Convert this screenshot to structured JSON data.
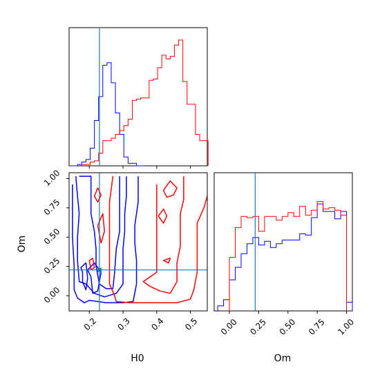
{
  "chart_data": {
    "type": "corner",
    "parameters": [
      "H0",
      "Om"
    ],
    "colors": {
      "sample_a": "#0000ff",
      "sample_b": "#ff0000",
      "truth": "#1f77b4"
    },
    "truth": {
      "H0": 0.23,
      "Om": 0.22
    },
    "axes": {
      "H0": {
        "range": [
          0.14,
          0.55
        ],
        "ticks": [
          0.2,
          0.3,
          0.4,
          0.5
        ],
        "tick_labels": [
          "0.2",
          "0.3",
          "0.4",
          "0.5"
        ],
        "label": "H0"
      },
      "Om": {
        "range": [
          -0.13,
          1.05
        ],
        "ticks": [
          0.0,
          0.25,
          0.5,
          0.75,
          1.0
        ],
        "tick_labels": [
          "0.00",
          "0.25",
          "0.50",
          "0.75",
          "1.00"
        ],
        "label": "Om"
      }
    },
    "hist_H0": {
      "bin_width": 0.0125,
      "series": [
        {
          "color": "blue",
          "x": [
            0.14,
            0.1525,
            0.165,
            0.1775,
            0.19,
            0.2025,
            0.215,
            0.2275,
            0.24,
            0.2525,
            0.265,
            0.2775,
            0.29,
            0.3025,
            0.315,
            0.3275,
            0.34,
            0.3525
          ],
          "y": [
            0,
            0,
            0.01,
            0.03,
            0.05,
            0.14,
            0.36,
            0.55,
            0.8,
            0.82,
            0.66,
            0.42,
            0.25,
            0.07,
            0.02,
            0.02,
            0,
            0
          ]
        },
        {
          "color": "red",
          "x": [
            0.1775,
            0.19,
            0.2025,
            0.215,
            0.2275,
            0.24,
            0.2525,
            0.265,
            0.2775,
            0.29,
            0.3025,
            0.315,
            0.3275,
            0.34,
            0.3525,
            0.365,
            0.3775,
            0.39,
            0.4025,
            0.415,
            0.4275,
            0.44,
            0.4525,
            0.465,
            0.4775,
            0.49,
            0.5025,
            0.515,
            0.5275,
            0.54
          ],
          "y": [
            0.01,
            0.01,
            0.03,
            0.04,
            0.1,
            0.2,
            0.2,
            0.22,
            0.25,
            0.28,
            0.32,
            0.37,
            0.52,
            0.53,
            0.54,
            0.54,
            0.68,
            0.69,
            0.78,
            0.88,
            0.85,
            0.87,
            0.96,
            1.0,
            0.67,
            0.49,
            0.49,
            0.25,
            0.2,
            0.2
          ]
        }
      ]
    },
    "hist_Om": {
      "bin_width": 0.05,
      "series": [
        {
          "color": "blue",
          "x": [
            -0.1,
            -0.05,
            0.0,
            0.05,
            0.1,
            0.15,
            0.2,
            0.25,
            0.3,
            0.35,
            0.4,
            0.45,
            0.5,
            0.55,
            0.6,
            0.65,
            0.7,
            0.75,
            0.8,
            0.85,
            0.9,
            0.95,
            1.0
          ],
          "y": [
            0.04,
            0.09,
            0.25,
            0.35,
            0.46,
            0.54,
            0.59,
            0.53,
            0.56,
            0.51,
            0.54,
            0.57,
            0.57,
            0.57,
            0.62,
            0.61,
            0.75,
            0.86,
            0.8,
            0.8,
            0.74,
            0.8,
            0.07
          ]
        },
        {
          "color": "red",
          "x": [
            0.0,
            0.05,
            0.1,
            0.15,
            0.2,
            0.25,
            0.3,
            0.35,
            0.4,
            0.45,
            0.5,
            0.55,
            0.6,
            0.65,
            0.7,
            0.75,
            0.8,
            0.85,
            0.9,
            0.95
          ],
          "y": [
            0.43,
            0.67,
            0.76,
            0.75,
            0.76,
            0.64,
            0.76,
            0.76,
            0.73,
            0.76,
            0.79,
            0.76,
            0.84,
            0.77,
            0.81,
            0.88,
            0.82,
            0.83,
            0.81,
            0.77
          ]
        }
      ]
    },
    "contours": [
      {
        "color": "blue",
        "level": "outer",
        "points": [
          [
            0.17,
            1.02
          ],
          [
            0.205,
            1.02
          ],
          [
            0.205,
            0.88
          ],
          [
            0.205,
            0.7
          ],
          [
            0.215,
            0.55
          ],
          [
            0.22,
            0.4
          ],
          [
            0.22,
            0.25
          ],
          [
            0.23,
            0.1
          ],
          [
            0.25,
            0.06
          ],
          [
            0.27,
            0.06
          ],
          [
            0.275,
            0.2
          ],
          [
            0.28,
            0.4
          ],
          [
            0.29,
            0.55
          ],
          [
            0.29,
            0.7
          ],
          [
            0.29,
            0.85
          ],
          [
            0.29,
            1.02
          ]
        ],
        "closed": false
      },
      {
        "color": "blue",
        "level": "outer2",
        "points": [
          [
            0.31,
            1.02
          ],
          [
            0.31,
            0.85
          ],
          [
            0.305,
            0.7
          ],
          [
            0.305,
            0.55
          ],
          [
            0.3,
            0.4
          ],
          [
            0.3,
            0.25
          ],
          [
            0.3,
            0.1
          ],
          [
            0.28,
            0.02
          ],
          [
            0.245,
            -0.01
          ],
          [
            0.215,
            0.02
          ],
          [
            0.19,
            0.1
          ],
          [
            0.17,
            0.12
          ],
          [
            0.165,
            0.3
          ],
          [
            0.165,
            0.5
          ],
          [
            0.17,
            0.7
          ],
          [
            0.165,
            0.85
          ],
          [
            0.16,
            1.02
          ]
        ],
        "closed": false
      },
      {
        "color": "blue",
        "level": "outermost",
        "points": [
          [
            0.345,
            1.02
          ],
          [
            0.345,
            0.8
          ],
          [
            0.335,
            0.6
          ],
          [
            0.335,
            0.45
          ],
          [
            0.34,
            0.3
          ],
          [
            0.34,
            0.1
          ],
          [
            0.33,
            -0.05
          ],
          [
            0.3,
            -0.06
          ],
          [
            0.25,
            -0.06
          ],
          [
            0.2,
            -0.04
          ],
          [
            0.185,
            -0.06
          ],
          [
            0.165,
            -0.02
          ],
          [
            0.155,
            0.05
          ],
          [
            0.155,
            0.25
          ],
          [
            0.15,
            0.5
          ],
          [
            0.15,
            0.75
          ],
          [
            0.15,
            0.95
          ]
        ],
        "closed": false
      },
      {
        "color": "blue",
        "level": "island",
        "points": [
          [
            0.195,
            0.22
          ],
          [
            0.205,
            0.16
          ],
          [
            0.21,
            0.02
          ],
          [
            0.225,
            0.04
          ],
          [
            0.235,
            0.2
          ],
          [
            0.215,
            0.28
          ],
          [
            0.195,
            0.22
          ]
        ],
        "closed": true
      },
      {
        "color": "blue",
        "level": "island2",
        "points": [
          [
            0.175,
            0.24
          ],
          [
            0.18,
            0.2
          ],
          [
            0.18,
            0.12
          ],
          [
            0.19,
            0.05
          ],
          [
            0.195,
            0.15
          ],
          [
            0.19,
            0.28
          ],
          [
            0.175,
            0.24
          ]
        ],
        "closed": true
      },
      {
        "color": "red",
        "level": "inner",
        "points": [
          [
            0.48,
            1.02
          ],
          [
            0.48,
            0.82
          ],
          [
            0.47,
            0.7
          ],
          [
            0.47,
            0.55
          ],
          [
            0.47,
            0.42
          ],
          [
            0.46,
            0.28
          ],
          [
            0.46,
            0.12
          ],
          [
            0.44,
            0.02
          ],
          [
            0.41,
            0.04
          ],
          [
            0.38,
            0.08
          ],
          [
            0.36,
            0.12
          ],
          [
            0.38,
            0.16
          ],
          [
            0.4,
            0.2
          ],
          [
            0.4,
            0.35
          ],
          [
            0.4,
            0.55
          ],
          [
            0.4,
            0.75
          ],
          [
            0.4,
            0.95
          ]
        ],
        "closed": false
      },
      {
        "color": "red",
        "level": "outer",
        "points": [
          [
            0.55,
            0.85
          ],
          [
            0.54,
            0.75
          ],
          [
            0.52,
            0.62
          ],
          [
            0.52,
            0.48
          ],
          [
            0.52,
            0.35
          ],
          [
            0.52,
            0.2
          ],
          [
            0.51,
            0.05
          ],
          [
            0.5,
            -0.03
          ],
          [
            0.46,
            -0.06
          ],
          [
            0.4,
            -0.06
          ],
          [
            0.32,
            -0.06
          ],
          [
            0.28,
            -0.05
          ],
          [
            0.275,
            0.0
          ],
          [
            0.26,
            0.1
          ],
          [
            0.26,
            0.3
          ],
          [
            0.26,
            0.55
          ],
          [
            0.26,
            0.8
          ],
          [
            0.27,
            1.02
          ]
        ],
        "closed": false
      },
      {
        "color": "red",
        "level": "island",
        "points": [
          [
            0.42,
            0.9
          ],
          [
            0.43,
            0.84
          ],
          [
            0.45,
            0.86
          ],
          [
            0.46,
            0.92
          ],
          [
            0.44,
            0.98
          ],
          [
            0.42,
            0.9
          ]
        ],
        "closed": true
      },
      {
        "color": "red",
        "level": "island2",
        "points": [
          [
            0.405,
            0.68
          ],
          [
            0.42,
            0.62
          ],
          [
            0.43,
            0.68
          ],
          [
            0.42,
            0.74
          ],
          [
            0.405,
            0.68
          ]
        ],
        "closed": true
      },
      {
        "color": "red",
        "level": "island3",
        "points": [
          [
            0.42,
            0.3
          ],
          [
            0.435,
            0.28
          ],
          [
            0.44,
            0.32
          ],
          [
            0.42,
            0.3
          ]
        ],
        "closed": true
      },
      {
        "color": "red",
        "level": "island4",
        "points": [
          [
            0.215,
            0.85
          ],
          [
            0.225,
            0.8
          ],
          [
            0.235,
            0.86
          ],
          [
            0.225,
            0.92
          ],
          [
            0.215,
            0.85
          ]
        ],
        "closed": true
      },
      {
        "color": "red",
        "level": "island5",
        "points": [
          [
            0.225,
            0.6
          ],
          [
            0.235,
            0.45
          ],
          [
            0.245,
            0.55
          ],
          [
            0.24,
            0.7
          ],
          [
            0.225,
            0.6
          ]
        ],
        "closed": true
      },
      {
        "color": "red",
        "level": "island6",
        "points": [
          [
            0.2,
            0.3
          ],
          [
            0.205,
            0.22
          ],
          [
            0.215,
            0.24
          ],
          [
            0.21,
            0.32
          ],
          [
            0.2,
            0.3
          ]
        ],
        "closed": true
      }
    ]
  }
}
